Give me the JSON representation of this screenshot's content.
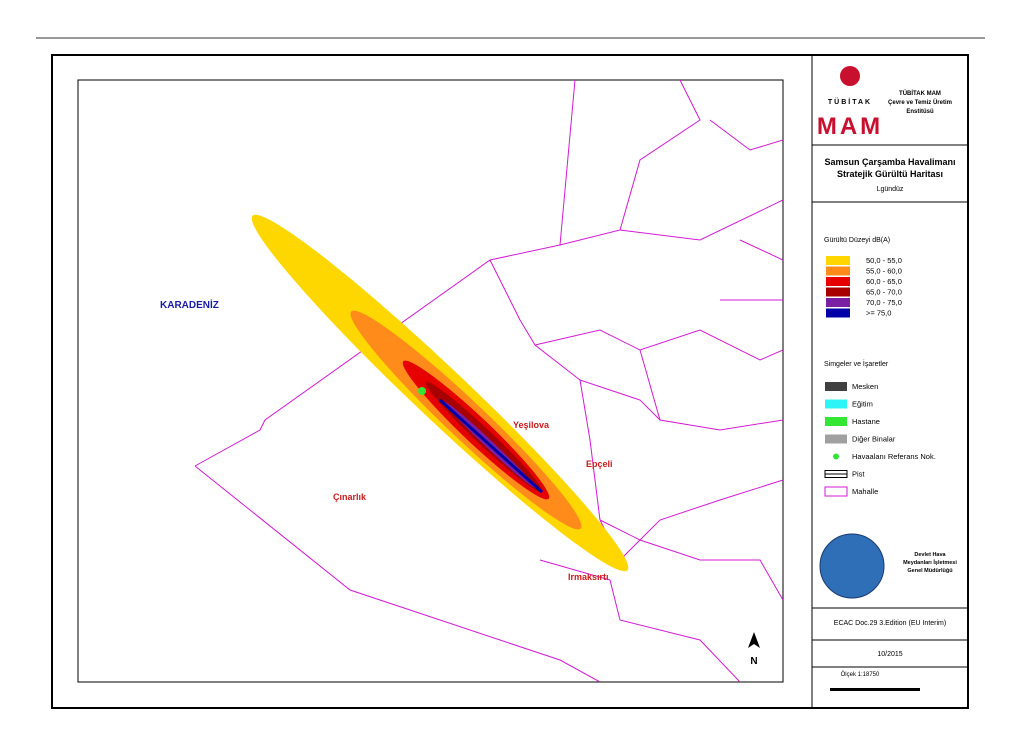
{
  "logo": {
    "top": "TÜBİTAK",
    "bottom": "MAM",
    "institute_1": "TÜBİTAK MAM",
    "institute_2": "Çevre ve Temiz Üretim",
    "institute_3": "Enstitüsü"
  },
  "title": {
    "line_1": "Samsun Çarşamba Havalimanı",
    "line_2": "Stratejik Gürültü Haritası",
    "line_3": "Lgündüz"
  },
  "noise_legend": {
    "title": "Gürültü Düzeyi dB(A)",
    "classes": [
      {
        "label": "50,0  -  55,0",
        "color": "#ffd700"
      },
      {
        "label": "55,0  -  60,0",
        "color": "#ff8c1a"
      },
      {
        "label": "60,0  -  65,0",
        "color": "#e60000"
      },
      {
        "label": "65,0  -  70,0",
        "color": "#a80000"
      },
      {
        "label": "70,0  -  75,0",
        "color": "#7b1fa2"
      },
      {
        "label": ">=  75,0",
        "color": "#0000a8"
      }
    ]
  },
  "symbols_legend": {
    "title": "Simgeler ve İşaretler",
    "items": [
      {
        "label": "Mesken",
        "color": "#404040"
      },
      {
        "label": "Eğitim",
        "color": "#2ef5f5"
      },
      {
        "label": "Hastane",
        "color": "#33e633"
      },
      {
        "label": "Diğer Binalar",
        "color": "#a0a0a0"
      },
      {
        "label": "Havaalanı Referans Nok.",
        "color": "#33e633"
      },
      {
        "label": "Pist",
        "color": "#ffffff"
      },
      {
        "label": "Mahalle",
        "color": "#ffffff"
      }
    ]
  },
  "dhmi": {
    "line_1": "Devlet Hava",
    "line_2": "Meydanları İşletmesi",
    "line_3": "Genel Müdürlüğü"
  },
  "method": "ECAC Doc.29 3.Edition (EU Interim)",
  "date": "10/2015",
  "scale": "Ölçek 1:18750",
  "map_labels": {
    "sea": "KARADENİZ",
    "yesilova": "Yeşilova",
    "epceli": "Epçeli",
    "cinarlik": "Çınarlık",
    "irmaksirti": "Irmaksırtı",
    "north": "N"
  }
}
